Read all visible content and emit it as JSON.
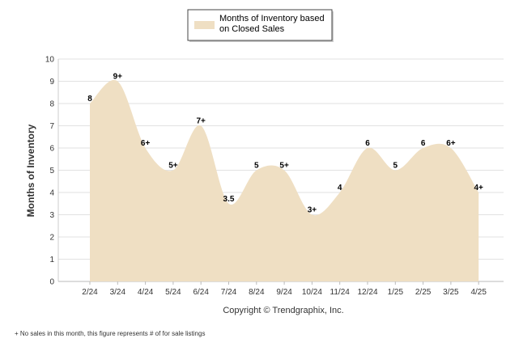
{
  "chart_data": {
    "type": "area",
    "title": "",
    "xlabel": "",
    "ylabel": "Months of Inventory",
    "ylim": [
      0,
      10
    ],
    "yticks": [
      0,
      1,
      2,
      3,
      4,
      5,
      6,
      7,
      8,
      9,
      10
    ],
    "grid": true,
    "legend_position": "top",
    "categories": [
      "2/24",
      "3/24",
      "4/24",
      "5/24",
      "6/24",
      "7/24",
      "8/24",
      "9/24",
      "10/24",
      "11/24",
      "12/24",
      "1/25",
      "2/25",
      "3/25",
      "4/25"
    ],
    "series": [
      {
        "name": "Months of Inventory based on Closed Sales",
        "legend_lines": [
          "Months of Inventory based",
          "on Closed Sales"
        ],
        "color": "#efdfc3",
        "values": [
          8,
          9,
          6,
          5,
          7,
          3.5,
          5,
          5,
          3,
          4,
          6,
          5,
          6,
          6,
          4
        ],
        "labels": [
          "8",
          "9+",
          "6+",
          "5+",
          "7+",
          "3.5",
          "5",
          "5+",
          "3+",
          "4",
          "6",
          "5",
          "6",
          "6+",
          "4+"
        ]
      }
    ],
    "copyright": "Copyright © Trendgraphix, Inc.",
    "footnote": "+  No sales in this month, this figure represents # of for sale listings"
  }
}
